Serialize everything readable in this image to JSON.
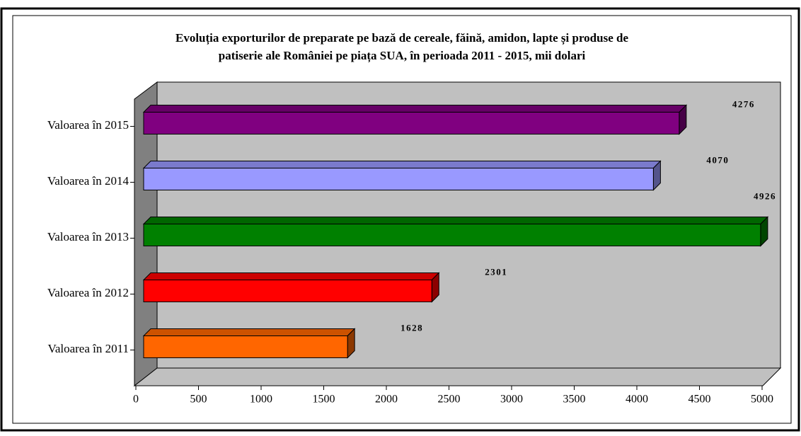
{
  "chart_data": {
    "type": "bar",
    "orientation": "horizontal",
    "three_d": true,
    "title": [
      "Evoluția exporturilor de preparate pe bază de cereale, făină, amidon, lapte și produse de",
      "patiserie ale României pe piața SUA,  în perioada 2011 - 2015, mii dolari"
    ],
    "categories": [
      "Valoarea în 2011",
      "Valoarea în 2012",
      "Valoarea în 2013",
      "Valoarea în 2014",
      "Valoarea în 2015"
    ],
    "values": [
      1628,
      2301,
      4926,
      4070,
      4276
    ],
    "colors": [
      "#ff6600",
      "#ff0000",
      "#008000",
      "#9999ff",
      "#800080"
    ],
    "xlim": [
      0,
      5000
    ],
    "xticks": [
      0,
      500,
      1000,
      1500,
      2000,
      2500,
      3000,
      3500,
      4000,
      4500,
      5000
    ]
  }
}
